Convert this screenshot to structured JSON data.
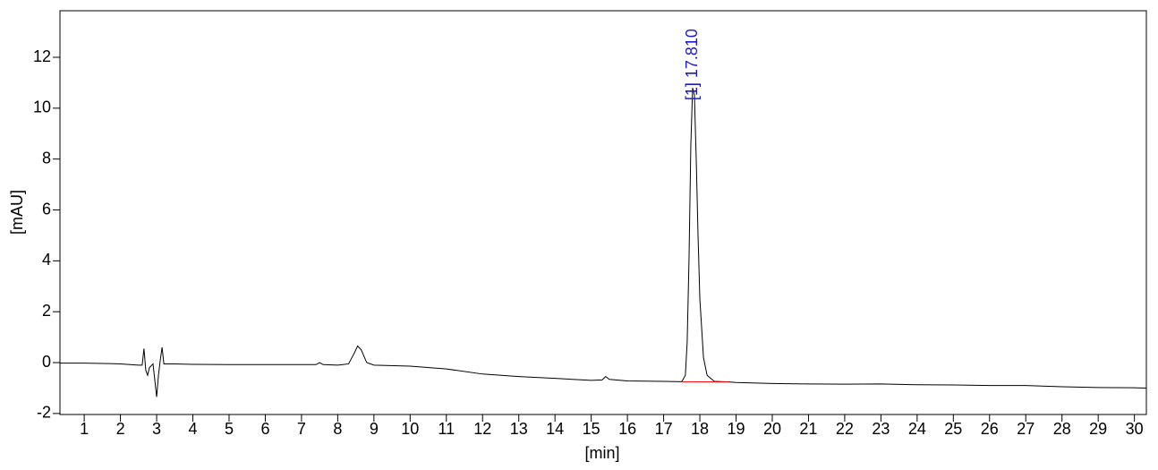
{
  "chart_data": {
    "type": "line",
    "xlabel": "[min]",
    "ylabel": "[mAU]",
    "xlim": [
      0.33,
      30.33
    ],
    "ylim": [
      -2.04,
      13.83
    ],
    "xticks": [
      1,
      2,
      3,
      4,
      5,
      6,
      7,
      8,
      9,
      10,
      11,
      12,
      13,
      14,
      15,
      16,
      17,
      18,
      19,
      20,
      21,
      22,
      23,
      24,
      25,
      26,
      27,
      28,
      29,
      30
    ],
    "yticks": [
      -2,
      0,
      2,
      4,
      6,
      8,
      10,
      12
    ],
    "grid": false,
    "series": [
      {
        "color": "#000000",
        "x": [
          0.33,
          1,
          2,
          2.5,
          2.6,
          2.65,
          2.7,
          2.75,
          2.8,
          2.9,
          3.0,
          3.05,
          3.1,
          3.15,
          3.2,
          3.3,
          3.5,
          4,
          5,
          6,
          7,
          7.4,
          7.5,
          7.6,
          8,
          8.3,
          8.45,
          8.55,
          8.65,
          8.8,
          9,
          10,
          11,
          12,
          13,
          14,
          15,
          15.3,
          15.4,
          15.5,
          16,
          17,
          17.5,
          17.6,
          17.65,
          17.7,
          17.75,
          17.8,
          17.85,
          17.9,
          17.95,
          18.0,
          18.1,
          18.2,
          18.4,
          18.8,
          19,
          20,
          21,
          22,
          23,
          24,
          25,
          26,
          27,
          28,
          29,
          30,
          30.33
        ],
        "values": [
          -0.02,
          -0.02,
          -0.05,
          -0.1,
          -0.1,
          0.55,
          -0.3,
          -0.5,
          -0.2,
          -0.05,
          -1.35,
          -0.5,
          0.1,
          0.6,
          -0.05,
          -0.05,
          -0.05,
          -0.07,
          -0.08,
          -0.08,
          -0.08,
          -0.08,
          0.0,
          -0.08,
          -0.1,
          -0.05,
          0.35,
          0.65,
          0.5,
          0.0,
          -0.1,
          -0.14,
          -0.25,
          -0.45,
          -0.55,
          -0.62,
          -0.7,
          -0.68,
          -0.55,
          -0.66,
          -0.72,
          -0.74,
          -0.75,
          -0.5,
          0.8,
          4,
          8.5,
          10.8,
          10.5,
          8,
          5,
          2.5,
          0.2,
          -0.5,
          -0.74,
          -0.76,
          -0.78,
          -0.82,
          -0.84,
          -0.85,
          -0.84,
          -0.87,
          -0.88,
          -0.9,
          -0.9,
          -0.95,
          -0.98,
          -0.99,
          -1.0
        ]
      },
      {
        "color": "#ff0000",
        "x": [
          17.5,
          18.8
        ],
        "values": [
          -0.75,
          -0.76
        ]
      }
    ],
    "annotations": [
      {
        "x": 17.81,
        "y": 10.8,
        "text": "[1]  17.810",
        "color": "#1a1acc"
      }
    ]
  }
}
